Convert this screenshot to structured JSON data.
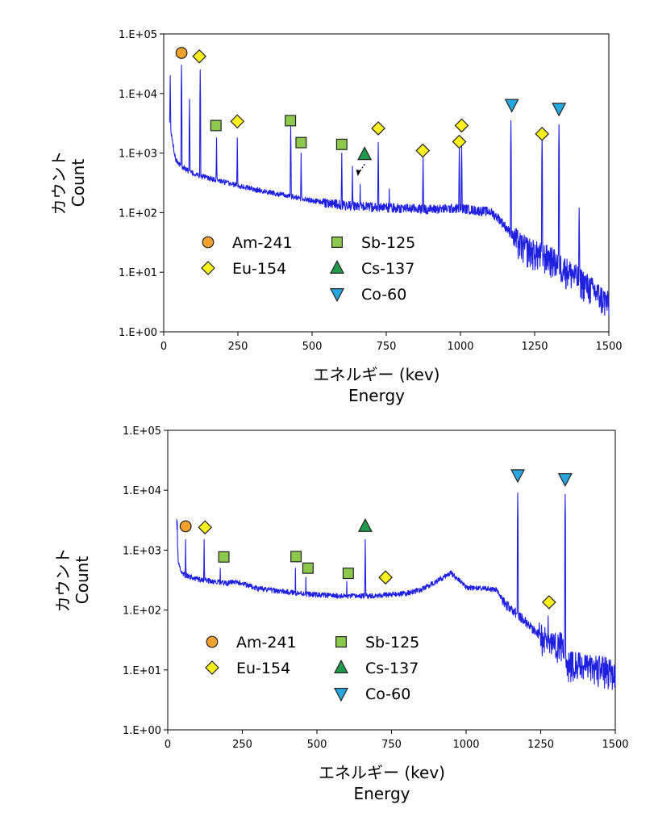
{
  "colors": {
    "spectrum": "#1f1fe0",
    "Am-241": "#f2a22c",
    "Eu-154": "#fff21a",
    "Sb-125": "#8cc84b",
    "Cs-137": "#1f9a4a",
    "Co-60": "#27a7e0"
  },
  "legend": [
    {
      "name": "Am-241",
      "marker": "circle"
    },
    {
      "name": "Eu-154",
      "marker": "diamond"
    },
    {
      "name": "Sb-125",
      "marker": "square"
    },
    {
      "name": "Cs-137",
      "marker": "triangle-up"
    },
    {
      "name": "Co-60",
      "marker": "triangle-down"
    }
  ],
  "chart_data": [
    {
      "type": "line",
      "xlabel": "エネルギー (kev)",
      "xlabel_sub": "Energy",
      "ylabel": "カウント",
      "ylabel_sub": "Count",
      "xlim": [
        0,
        1500
      ],
      "ylim": [
        1,
        100000
      ],
      "yscale": "log",
      "x_ticks": [
        "0",
        "250",
        "500",
        "750",
        "1000",
        "1250",
        "1500"
      ],
      "y_ticks": [
        "1.E+00",
        "1.E+01",
        "1.E+02",
        "1.E+03",
        "1.E+04",
        "1.E+05"
      ],
      "legend_placement": "lower-left",
      "cs_arrow": true,
      "continuum": [
        [
          20,
          3000
        ],
        [
          40,
          800
        ],
        [
          60,
          600
        ],
        [
          100,
          450
        ],
        [
          150,
          380
        ],
        [
          200,
          330
        ],
        [
          300,
          250
        ],
        [
          400,
          200
        ],
        [
          500,
          160
        ],
        [
          600,
          135
        ],
        [
          700,
          125
        ],
        [
          800,
          120
        ],
        [
          900,
          115
        ],
        [
          1000,
          120
        ],
        [
          1050,
          110
        ],
        [
          1100,
          105
        ],
        [
          1130,
          80
        ],
        [
          1170,
          45
        ],
        [
          1200,
          30
        ],
        [
          1250,
          22
        ],
        [
          1300,
          18
        ],
        [
          1350,
          12
        ],
        [
          1400,
          8
        ],
        [
          1450,
          5
        ],
        [
          1500,
          3
        ]
      ],
      "peaks": [
        [
          22,
          20000
        ],
        [
          60,
          30000
        ],
        [
          87,
          8000
        ],
        [
          123,
          25000
        ],
        [
          178,
          1800
        ],
        [
          248,
          1800
        ],
        [
          428,
          3000
        ],
        [
          463,
          1000
        ],
        [
          600,
          1000
        ],
        [
          636,
          600
        ],
        [
          662,
          300
        ],
        [
          723,
          1500
        ],
        [
          760,
          250
        ],
        [
          874,
          900
        ],
        [
          996,
          1200
        ],
        [
          1004,
          1500
        ],
        [
          1170,
          3500
        ],
        [
          1275,
          2000
        ],
        [
          1332,
          3000
        ],
        [
          1400,
          120
        ]
      ],
      "markers": [
        {
          "isotope": "Am-241",
          "x": 60,
          "y": 48000
        },
        {
          "isotope": "Eu-154",
          "x": 120,
          "y": 42000
        },
        {
          "isotope": "Sb-125",
          "x": 176,
          "y": 2900
        },
        {
          "isotope": "Eu-154",
          "x": 248,
          "y": 3400
        },
        {
          "isotope": "Sb-125",
          "x": 427,
          "y": 3500
        },
        {
          "isotope": "Sb-125",
          "x": 463,
          "y": 1500
        },
        {
          "isotope": "Sb-125",
          "x": 600,
          "y": 1400
        },
        {
          "isotope": "Cs-137",
          "x": 677,
          "y": 950
        },
        {
          "isotope": "Eu-154",
          "x": 723,
          "y": 2600
        },
        {
          "isotope": "Eu-154",
          "x": 873,
          "y": 1100
        },
        {
          "isotope": "Eu-154",
          "x": 996,
          "y": 1550
        },
        {
          "isotope": "Eu-154",
          "x": 1004,
          "y": 2900
        },
        {
          "isotope": "Co-60",
          "x": 1173,
          "y": 6500
        },
        {
          "isotope": "Eu-154",
          "x": 1275,
          "y": 2100
        },
        {
          "isotope": "Co-60",
          "x": 1332,
          "y": 5600
        }
      ]
    },
    {
      "type": "line",
      "xlabel": "エネルギー (kev)",
      "xlabel_sub": "Energy",
      "ylabel": "カウント",
      "ylabel_sub": "Count",
      "xlim": [
        0,
        1500
      ],
      "ylim": [
        1,
        100000
      ],
      "yscale": "log",
      "x_ticks": [
        "0",
        "250",
        "500",
        "750",
        "1000",
        "1250",
        "1500"
      ],
      "y_ticks": [
        "1.E+00",
        "1.E+01",
        "1.E+02",
        "1.E+03",
        "1.E+04",
        "1.E+05"
      ],
      "legend_placement": "lower-left",
      "cs_arrow": false,
      "continuum": [
        [
          30,
          3000
        ],
        [
          35,
          700
        ],
        [
          45,
          420
        ],
        [
          60,
          380
        ],
        [
          100,
          330
        ],
        [
          150,
          300
        ],
        [
          200,
          280
        ],
        [
          230,
          300
        ],
        [
          300,
          230
        ],
        [
          400,
          200
        ],
        [
          500,
          180
        ],
        [
          600,
          170
        ],
        [
          700,
          175
        ],
        [
          800,
          190
        ],
        [
          850,
          220
        ],
        [
          900,
          300
        ],
        [
          950,
          420
        ],
        [
          980,
          300
        ],
        [
          1000,
          240
        ],
        [
          1100,
          220
        ],
        [
          1130,
          130
        ],
        [
          1180,
          80
        ],
        [
          1230,
          45
        ],
        [
          1280,
          30
        ],
        [
          1320,
          28
        ],
        [
          1340,
          14
        ],
        [
          1400,
          12
        ],
        [
          1450,
          11
        ],
        [
          1500,
          10
        ]
      ],
      "peaks": [
        [
          32,
          3000
        ],
        [
          60,
          1500
        ],
        [
          122,
          1500
        ],
        [
          176,
          500
        ],
        [
          428,
          500
        ],
        [
          463,
          350
        ],
        [
          600,
          300
        ],
        [
          662,
          1500
        ],
        [
          1173,
          9000
        ],
        [
          1275,
          80
        ],
        [
          1332,
          8500
        ],
        [
          1420,
          10
        ]
      ],
      "markers": [
        {
          "isotope": "Am-241",
          "x": 60,
          "y": 2500
        },
        {
          "isotope": "Eu-154",
          "x": 125,
          "y": 2400
        },
        {
          "isotope": "Sb-125",
          "x": 188,
          "y": 770
        },
        {
          "isotope": "Sb-125",
          "x": 430,
          "y": 780
        },
        {
          "isotope": "Sb-125",
          "x": 470,
          "y": 500
        },
        {
          "isotope": "Sb-125",
          "x": 605,
          "y": 410
        },
        {
          "isotope": "Cs-137",
          "x": 662,
          "y": 2500
        },
        {
          "isotope": "Eu-154",
          "x": 730,
          "y": 350
        },
        {
          "isotope": "Co-60",
          "x": 1173,
          "y": 18000
        },
        {
          "isotope": "Eu-154",
          "x": 1278,
          "y": 135
        },
        {
          "isotope": "Co-60",
          "x": 1332,
          "y": 15500
        }
      ]
    }
  ]
}
